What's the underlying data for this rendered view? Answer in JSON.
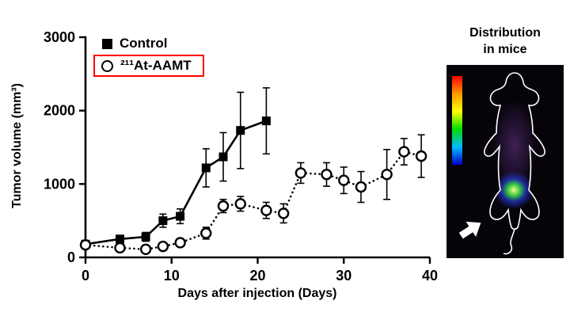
{
  "chart_data": {
    "type": "line",
    "title": "",
    "xlabel": "Days after injection (Days)",
    "ylabel": "Tumor volume (mm³)",
    "xlim": [
      0,
      40
    ],
    "ylim": [
      0,
      3000
    ],
    "xticks": [
      0,
      10,
      20,
      30,
      40
    ],
    "yticks": [
      0,
      1000,
      2000,
      3000
    ],
    "grid": false,
    "legend": {
      "position": "top-left-inside",
      "highlight_box_color": "#ff0000"
    },
    "series": [
      {
        "name": "Control",
        "display_name": "Control",
        "marker": "filled-square",
        "line_style": "solid",
        "color": "#000000",
        "x": [
          0,
          4,
          7,
          9,
          11,
          14,
          16,
          18,
          21
        ],
        "y": [
          180,
          250,
          280,
          500,
          560,
          1220,
          1370,
          1730,
          1860
        ],
        "yerr": [
          40,
          50,
          60,
          90,
          100,
          260,
          330,
          520,
          450
        ]
      },
      {
        "name": "211At-AAMT",
        "display_name": "²¹¹At-AAMT",
        "marker": "open-circle",
        "line_style": "dotted",
        "color": "#000000",
        "x": [
          0,
          4,
          7,
          9,
          11,
          14,
          16,
          18,
          21,
          23,
          25,
          28,
          30,
          32,
          35,
          37,
          39
        ],
        "y": [
          170,
          130,
          110,
          150,
          200,
          330,
          700,
          730,
          640,
          600,
          1150,
          1130,
          1050,
          960,
          1130,
          1440,
          1380
        ],
        "yerr": [
          40,
          35,
          35,
          45,
          55,
          80,
          90,
          100,
          110,
          130,
          140,
          160,
          180,
          210,
          340,
          180,
          290
        ]
      }
    ]
  },
  "side_panel": {
    "title_line1": "Distribution",
    "title_line2": "in mice",
    "colorbar_colors": [
      "#ff0000",
      "#ff9900",
      "#ffff00",
      "#00dd00",
      "#00bbff",
      "#0000cc"
    ],
    "signal": {
      "center_color": "#eeff88",
      "mid_color": "#33cc44",
      "outer_color": "#2233bb"
    }
  }
}
